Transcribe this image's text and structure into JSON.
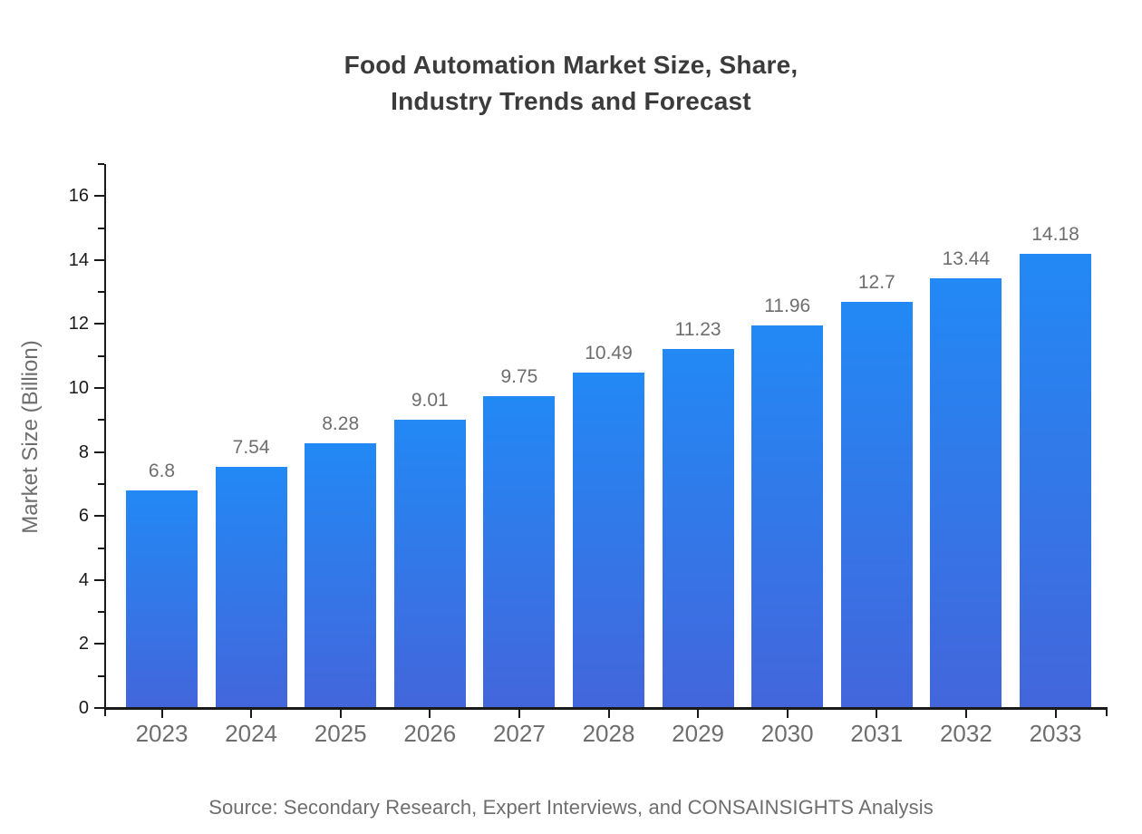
{
  "title_lines": [
    "Food Automation Market Size, Share,",
    "Industry Trends and Forecast"
  ],
  "source_note": "Source: Secondary Research, Expert Interviews, and CONSAINSIGHTS Analysis",
  "chart_data": {
    "type": "bar",
    "title": "Food Automation Market Size, Share, Industry Trends and Forecast",
    "categories": [
      "2023",
      "2024",
      "2025",
      "2026",
      "2027",
      "2028",
      "2029",
      "2030",
      "2031",
      "2032",
      "2033"
    ],
    "values": [
      6.8,
      7.54,
      8.28,
      9.01,
      9.75,
      10.49,
      11.23,
      11.96,
      12.7,
      13.44,
      14.18
    ],
    "value_labels": [
      "6.8",
      "7.54",
      "8.28",
      "9.01",
      "9.75",
      "10.49",
      "11.23",
      "11.96",
      "12.7",
      "13.44",
      "14.18"
    ],
    "xlabel": "",
    "ylabel": "Market Size (Billion)",
    "ylim": [
      0,
      17
    ],
    "ytick_major_step": 2,
    "ytick_minor_step": 1,
    "ytick_labels": [
      "0",
      "2",
      "4",
      "6",
      "8",
      "10",
      "12",
      "14",
      "16"
    ],
    "grid": false,
    "legend_position": "none",
    "colors": {
      "bar_gradient_top": "#2289f5",
      "bar_gradient_bottom": "#4366db",
      "axis": "#1a1a1a",
      "title_text": "#3b3b3b",
      "muted_text": "#6e6e6e"
    }
  }
}
